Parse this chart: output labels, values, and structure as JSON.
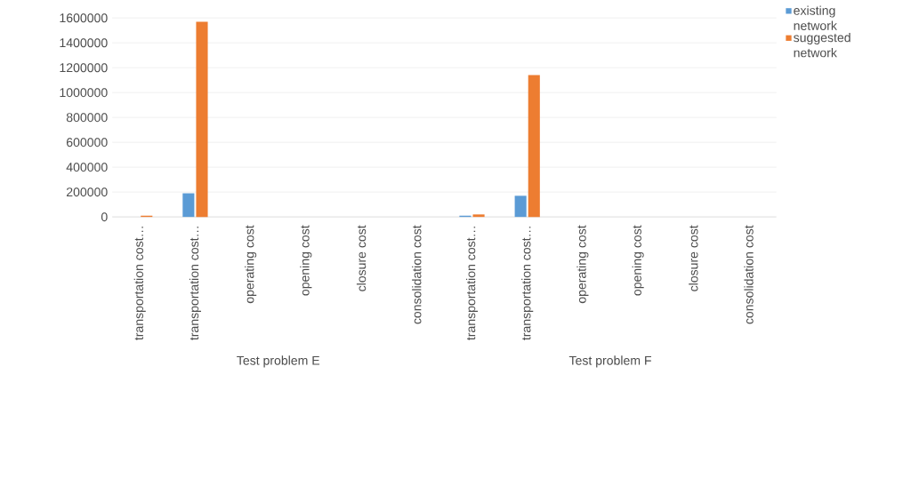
{
  "chart_data": {
    "type": "bar",
    "categories": [
      "transportation cost…",
      "transportation cost…",
      "operating cost",
      "opening cost",
      "closure cost",
      "consolidation cost",
      "transportation cost…",
      "transportation cost…",
      "operating cost",
      "opening cost",
      "closure cost",
      "consolidation cost"
    ],
    "series": [
      {
        "name": "existing network",
        "color": "#5b9bd5",
        "values": [
          0,
          190000,
          0,
          null,
          null,
          null,
          10000,
          170000,
          0,
          null,
          null,
          null
        ]
      },
      {
        "name": "suggested network",
        "color": "#ed7d31",
        "values": [
          10000,
          1570000,
          0,
          null,
          0,
          0,
          20000,
          1140000,
          0,
          null,
          0,
          0
        ]
      }
    ],
    "ylim": [
      0,
      1600000
    ],
    "yticks": [
      0,
      200000,
      400000,
      600000,
      800000,
      1000000,
      1200000,
      1400000,
      1600000
    ],
    "grid": "y",
    "legend": "top right",
    "annotations": [
      "Test problem E",
      "Test problem F"
    ]
  }
}
